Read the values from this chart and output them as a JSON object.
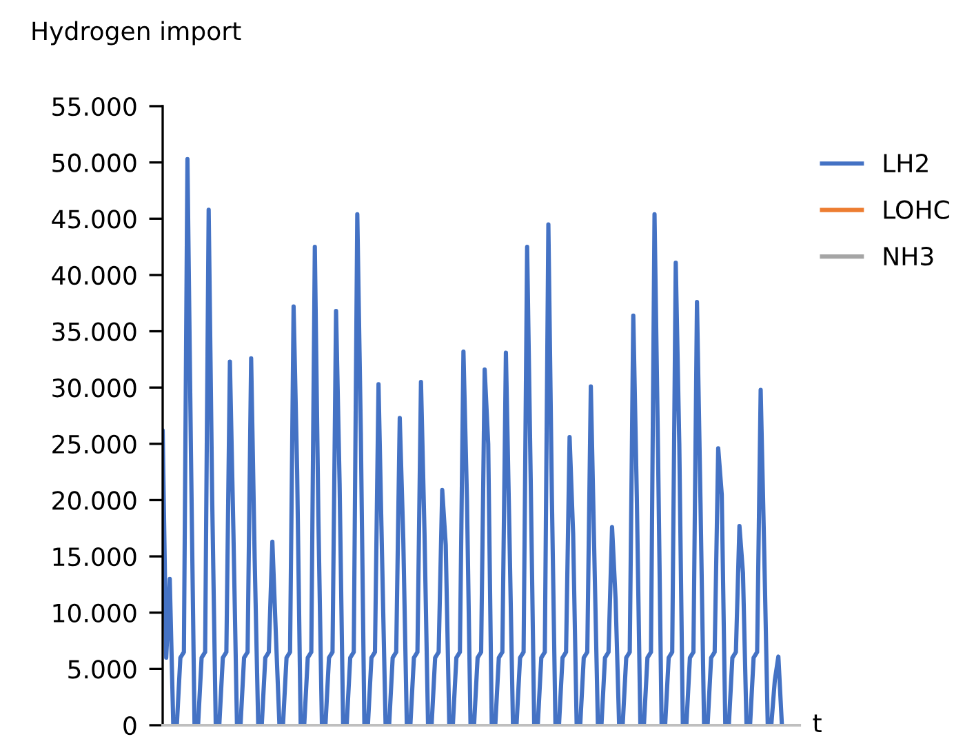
{
  "chart_data": {
    "type": "line",
    "ylabel": "Hydrogen import",
    "xlabel": "t",
    "categories": [
      null,
      null,
      null,
      null,
      null,
      null,
      null,
      null,
      null,
      null,
      null,
      null,
      null,
      null,
      null,
      null,
      null,
      null,
      null,
      null,
      null,
      null,
      null,
      null,
      null,
      null,
      null,
      null,
      null,
      null,
      null,
      null,
      null,
      null,
      null,
      null,
      null,
      null,
      null,
      null,
      null,
      null,
      null,
      null,
      null,
      null,
      null,
      null,
      null,
      null,
      null,
      null,
      null,
      null,
      null,
      null,
      null,
      null,
      null,
      null,
      null,
      null,
      null,
      null,
      null,
      null,
      null,
      null,
      null,
      null,
      null,
      null,
      null,
      null,
      null,
      null,
      null,
      null,
      null,
      null,
      null,
      null,
      null,
      null,
      null,
      null,
      null,
      null,
      null,
      null,
      null,
      null,
      null,
      null,
      null,
      null,
      null,
      null,
      null,
      null,
      null,
      null,
      null,
      null,
      null,
      null,
      null,
      null,
      null,
      null,
      null,
      null,
      null,
      null,
      null,
      null,
      null,
      null,
      null,
      null,
      null,
      null,
      null,
      null,
      null,
      null,
      null,
      null,
      null,
      null,
      null,
      null,
      null,
      null,
      null,
      null,
      null,
      null,
      null,
      null,
      null,
      null,
      null,
      null,
      null,
      null,
      null,
      null,
      null,
      null,
      null,
      null,
      null,
      null,
      null,
      null,
      null,
      null,
      null,
      null,
      null,
      null,
      null,
      null,
      null,
      null,
      null,
      null,
      null,
      null,
      null,
      null,
      null,
      null,
      null,
      null
    ],
    "series": [
      {
        "name": "LH2",
        "color": "#4472c4",
        "values": [
          26200,
          6000,
          13000,
          0,
          0,
          6000,
          6500,
          50300,
          24000,
          0,
          0,
          6000,
          6500,
          45800,
          20000,
          0,
          0,
          6000,
          6500,
          32300,
          17000,
          0,
          0,
          6000,
          6500,
          32600,
          14800,
          0,
          0,
          6000,
          6500,
          16300,
          8000,
          0,
          0,
          6000,
          6500,
          37200,
          22600,
          0,
          0,
          6000,
          6500,
          42500,
          18500,
          0,
          0,
          6000,
          6500,
          36800,
          21500,
          0,
          0,
          6000,
          6500,
          45400,
          26000,
          0,
          0,
          6000,
          6500,
          30300,
          15000,
          0,
          0,
          6000,
          6500,
          27300,
          16500,
          0,
          0,
          6000,
          6500,
          30500,
          17000,
          0,
          0,
          6000,
          6500,
          20900,
          16000,
          0,
          0,
          6000,
          6500,
          33200,
          20000,
          0,
          0,
          6000,
          6500,
          31600,
          25000,
          0,
          0,
          6000,
          6500,
          33100,
          17000,
          0,
          0,
          6000,
          6500,
          42500,
          22000,
          0,
          0,
          6000,
          6500,
          44500,
          20200,
          0,
          0,
          6000,
          6500,
          25600,
          17000,
          0,
          0,
          6000,
          6500,
          30100,
          15000,
          0,
          0,
          6000,
          6500,
          17600,
          11200,
          0,
          0,
          6000,
          6500,
          36400,
          20300,
          0,
          0,
          6000,
          6500,
          45400,
          24200,
          0,
          0,
          6000,
          6500,
          41100,
          25000,
          0,
          0,
          6000,
          6500,
          37600,
          19700,
          0,
          0,
          6000,
          6500,
          24600,
          20500,
          0,
          0,
          6000,
          6500,
          17700,
          13500,
          0,
          0,
          6000,
          6500,
          29800,
          15500,
          0,
          0,
          4000,
          6100,
          0
        ]
      },
      {
        "name": "LOHC",
        "color": "#ed7d31",
        "values": [
          null,
          null,
          null,
          null,
          null,
          null,
          null,
          null,
          null,
          null,
          null,
          null,
          null,
          null,
          null,
          null,
          null,
          null,
          null,
          null,
          null,
          null,
          null,
          null,
          null,
          null,
          null,
          null,
          null,
          null,
          null,
          null,
          null,
          null,
          null,
          null,
          null,
          null,
          null,
          null,
          null,
          null,
          null,
          null,
          null,
          null,
          null,
          null,
          null,
          null,
          null,
          null,
          null,
          null,
          null,
          null,
          null,
          null,
          null,
          null,
          null,
          null,
          null,
          null,
          null,
          null,
          null,
          null,
          null,
          null,
          null,
          null,
          null,
          null,
          null,
          null,
          null,
          null,
          null,
          null,
          null,
          null,
          null,
          null,
          null,
          null,
          null,
          null,
          null,
          null,
          null,
          null,
          null,
          null,
          null,
          null,
          null,
          null,
          null,
          null,
          null,
          null,
          null,
          null,
          null,
          null,
          null,
          null,
          null,
          null,
          null,
          null,
          null,
          null,
          null,
          null,
          null,
          null,
          null,
          null,
          null,
          null,
          null,
          null,
          null,
          null,
          null,
          null,
          null,
          null,
          null,
          null,
          null,
          null,
          null,
          null,
          null,
          null,
          null,
          null,
          null,
          null,
          null,
          null,
          null,
          null,
          null,
          null,
          null,
          null,
          null,
          null,
          null,
          null,
          null,
          null,
          null,
          null,
          null,
          null,
          null,
          null,
          null,
          null,
          null,
          null,
          null,
          null,
          null,
          null,
          null,
          null,
          null,
          null,
          null,
          null
        ]
      },
      {
        "name": "NH3",
        "color": "#a5a5a5",
        "values": [
          null,
          null,
          null,
          null,
          null,
          null,
          null,
          null,
          null,
          null,
          null,
          null,
          null,
          null,
          null,
          null,
          null,
          null,
          null,
          null,
          null,
          null,
          null,
          null,
          null,
          null,
          null,
          null,
          null,
          null,
          null,
          null,
          null,
          null,
          null,
          null,
          null,
          null,
          null,
          null,
          null,
          null,
          null,
          null,
          null,
          null,
          null,
          null,
          null,
          null,
          null,
          null,
          null,
          null,
          null,
          null,
          null,
          null,
          null,
          null,
          null,
          null,
          null,
          null,
          null,
          null,
          null,
          null,
          null,
          null,
          null,
          null,
          null,
          null,
          null,
          null,
          null,
          null,
          null,
          null,
          null,
          null,
          null,
          null,
          null,
          null,
          null,
          null,
          null,
          null,
          null,
          null,
          null,
          null,
          null,
          null,
          null,
          null,
          null,
          null,
          null,
          null,
          null,
          null,
          null,
          null,
          null,
          null,
          null,
          null,
          null,
          null,
          null,
          null,
          null,
          null,
          null,
          null,
          null,
          null,
          null,
          null,
          null,
          null,
          null,
          null,
          null,
          null,
          null,
          null,
          null,
          null,
          null,
          null,
          null,
          null,
          null,
          null,
          null,
          null,
          null,
          null,
          null,
          null,
          null,
          null,
          null,
          null,
          null,
          null,
          null,
          null,
          null,
          null,
          null,
          null,
          null,
          null,
          null,
          null,
          null,
          null,
          null,
          null,
          null,
          null,
          null,
          null,
          null,
          null,
          null,
          null,
          null,
          null,
          null,
          null
        ]
      }
    ],
    "ylim": [
      0,
      55000
    ],
    "yticks": [
      0,
      {
        "value": 5000,
        "label": "5.000"
      },
      {
        "value": 10000,
        "label": "10.000"
      },
      {
        "value": 15000,
        "label": "15.000"
      },
      {
        "value": 20000,
        "label": "20.000"
      },
      {
        "value": 25000,
        "label": "25.000"
      },
      {
        "value": 30000,
        "label": "30.000"
      },
      {
        "value": 35000,
        "label": "35.000"
      },
      {
        "value": 40000,
        "label": "40.000"
      },
      {
        "value": 45000,
        "label": "45.000"
      },
      {
        "value": 50000,
        "label": "50.000"
      },
      {
        "value": 55000,
        "label": "55.000"
      }
    ],
    "tick_labels": "y",
    "grid": false,
    "legend": "right"
  }
}
